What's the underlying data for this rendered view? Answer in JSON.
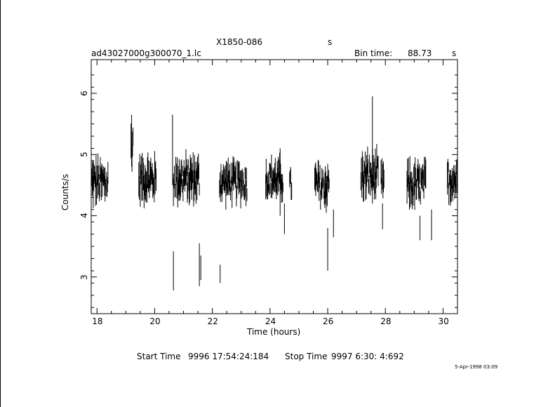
{
  "header": {
    "source_name": "X1850-086",
    "source_unit": "s",
    "filename": "ad43027000g300070_1.lc",
    "bin_time_label": "Bin time:",
    "bin_time_value": "88.73",
    "bin_time_unit": "s"
  },
  "footer": {
    "start_label": "Start Time",
    "start_value": "9996 17:54:24:184",
    "stop_label": "Stop Time",
    "stop_value": "9997  6:30: 4:692",
    "plot_date": "5-Apr-1998 03:09"
  },
  "chart_data": {
    "type": "line",
    "title": "X1850-086",
    "xlabel": "Time (hours)",
    "ylabel": "Counts/s",
    "xlim": [
      17.8,
      30.5
    ],
    "ylim": [
      2.4,
      6.55
    ],
    "xticks": [
      18,
      20,
      22,
      24,
      26,
      28,
      30
    ],
    "yticks": [
      3,
      4,
      5,
      6
    ],
    "grid": false,
    "segments": [
      {
        "x_start": 17.82,
        "x_end": 18.38,
        "mean": 4.55,
        "spread": 0.35
      },
      {
        "x_start": 19.18,
        "x_end": 19.25,
        "mean": 5.2,
        "spread": 0.4
      },
      {
        "x_start": 19.45,
        "x_end": 20.05,
        "mean": 4.6,
        "spread": 0.35
      },
      {
        "x_start": 20.65,
        "x_end": 21.55,
        "mean": 4.6,
        "spread": 0.35
      },
      {
        "x_start": 22.25,
        "x_end": 23.2,
        "mean": 4.55,
        "spread": 0.3
      },
      {
        "x_start": 23.85,
        "x_end": 24.45,
        "mean": 4.6,
        "spread": 0.3
      },
      {
        "x_start": 24.68,
        "x_end": 24.75,
        "mean": 4.5,
        "spread": 0.25
      },
      {
        "x_start": 25.55,
        "x_end": 26.05,
        "mean": 4.5,
        "spread": 0.35
      },
      {
        "x_start": 27.15,
        "x_end": 27.75,
        "mean": 4.65,
        "spread": 0.35
      },
      {
        "x_start": 27.85,
        "x_end": 27.95,
        "mean": 4.55,
        "spread": 0.3
      },
      {
        "x_start": 28.75,
        "x_end": 29.4,
        "mean": 4.5,
        "spread": 0.35
      },
      {
        "x_start": 30.15,
        "x_end": 30.5,
        "mean": 4.6,
        "spread": 0.35
      }
    ],
    "spikes": [
      {
        "x": 19.2,
        "low": 4.8,
        "high": 5.65
      },
      {
        "x": 20.62,
        "low": 4.5,
        "high": 5.65
      },
      {
        "x": 27.55,
        "low": 4.2,
        "high": 5.95
      },
      {
        "x": 24.35,
        "low": 4.0,
        "high": 5.1
      }
    ],
    "dropouts": [
      {
        "x": 20.65,
        "low": 2.78,
        "high": 3.42
      },
      {
        "x": 21.55,
        "low": 2.85,
        "high": 3.55
      },
      {
        "x": 21.6,
        "low": 2.95,
        "high": 3.35
      },
      {
        "x": 22.27,
        "low": 2.9,
        "high": 3.2
      },
      {
        "x": 24.5,
        "low": 3.7,
        "high": 4.2
      },
      {
        "x": 26.0,
        "low": 3.1,
        "high": 3.8
      },
      {
        "x": 26.2,
        "low": 3.65,
        "high": 4.1
      },
      {
        "x": 27.9,
        "low": 3.78,
        "high": 4.2
      },
      {
        "x": 29.2,
        "low": 3.6,
        "high": 4.0
      },
      {
        "x": 29.6,
        "low": 3.6,
        "high": 4.1
      }
    ]
  }
}
